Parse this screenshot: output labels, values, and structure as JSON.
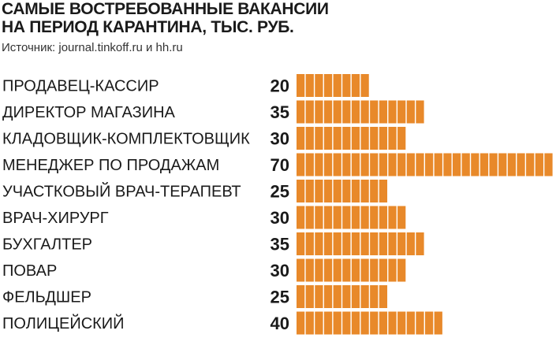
{
  "title_lines": [
    "САМЫЕ ВОСТРЕБОВАННЫЕ ВАКАНСИИ",
    "НА ПЕРИОД КАРАНТИНА, ТЫС. РУБ."
  ],
  "source": "Источник: journal.tinkoff.ru и hh.ru",
  "colors": {
    "bar": "#e8892a",
    "bar_gap": "#ffffff",
    "text": "#1a1a1a"
  },
  "chart_data": {
    "type": "bar",
    "orientation": "horizontal",
    "title": "САМЫЕ ВОСТРЕБОВАННЫЕ ВАКАНСИИ НА ПЕРИОД КАРАНТИНА, ТЫС. РУБ.",
    "categories": [
      "ПРОДАВЕЦ-КАССИР",
      "ДИРЕКТОР МАГАЗИНА",
      "КЛАДОВЩИК-КОМПЛЕКТОВЩИК",
      "МЕНЕДЖЕР ПО ПРОДАЖАМ",
      "УЧАСТКОВЫЙ ВРАЧ-ТЕРАПЕВТ",
      "ВРАЧ-ХИРУРГ",
      "БУХГАЛТЕР",
      "ПОВАР",
      "ФЕЛЬДШЕР",
      "ПОЛИЦЕЙСКИЙ"
    ],
    "values": [
      20,
      35,
      30,
      70,
      25,
      30,
      35,
      30,
      25,
      40
    ],
    "value_labels": [
      "20",
      "35",
      "30",
      "70",
      "25",
      "30",
      "35",
      "30",
      "25",
      "40"
    ],
    "xlim": [
      0,
      70
    ],
    "grid": false,
    "unit_segment": 2.5
  }
}
